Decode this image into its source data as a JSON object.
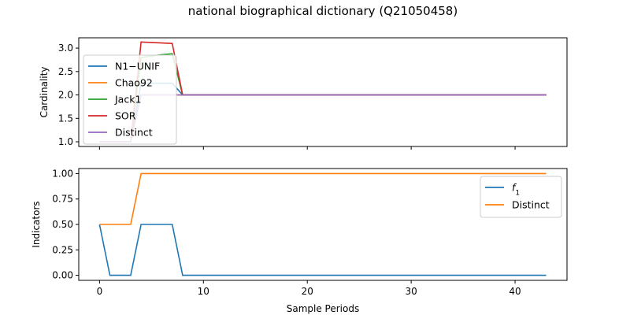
{
  "chart_data": [
    {
      "type": "line",
      "title": "national biographical dictionary (Q21050458)",
      "xlabel": "",
      "ylabel": "Cardinality",
      "xlim": [
        -2,
        45
      ],
      "ylim": [
        0.9,
        3.22
      ],
      "xticks": [
        0,
        10,
        20,
        30,
        40
      ],
      "xtick_labels_visible": false,
      "yticks": [
        1.0,
        1.5,
        2.0,
        2.5,
        3.0
      ],
      "ytick_labels": [
        "1.0",
        "1.5",
        "2.0",
        "2.5",
        "3.0"
      ],
      "grid": false,
      "legend_position": "left",
      "series": [
        {
          "name": "N1−UNIF",
          "color": "#1f77b4",
          "x": [
            0,
            1,
            2,
            3,
            4,
            5,
            6,
            7,
            8,
            43
          ],
          "y": [
            1.0,
            1.0,
            1.0,
            1.0,
            2.25,
            2.25,
            2.25,
            2.25,
            2.0,
            2.0
          ]
        },
        {
          "name": "Chao92",
          "color": "#ff7f0e",
          "x": [
            0,
            1,
            2,
            3,
            4,
            5,
            6,
            7,
            8,
            43
          ],
          "y": [
            1.0,
            1.0,
            1.0,
            1.0,
            2.0,
            2.0,
            2.0,
            2.0,
            2.0,
            2.0
          ]
        },
        {
          "name": "Jack1",
          "color": "#2ca02c",
          "x": [
            0,
            1,
            2,
            3,
            4,
            5,
            6,
            7,
            8,
            43
          ],
          "y": [
            1.0,
            1.0,
            1.0,
            1.0,
            2.8,
            2.83,
            2.86,
            2.88,
            2.0,
            2.0
          ]
        },
        {
          "name": "SOR",
          "color": "#d62728",
          "x": [
            0,
            1,
            2,
            3,
            4,
            5,
            6,
            7,
            8,
            43
          ],
          "y": [
            1.0,
            1.0,
            1.0,
            1.0,
            3.13,
            3.12,
            3.11,
            3.1,
            2.0,
            2.0
          ]
        },
        {
          "name": "Distinct",
          "color": "#9467bd",
          "x": [
            0,
            1,
            2,
            3,
            4,
            5,
            6,
            7,
            8,
            43
          ],
          "y": [
            1.0,
            1.0,
            1.0,
            1.0,
            2.0,
            2.0,
            2.0,
            2.0,
            2.0,
            2.0
          ]
        }
      ]
    },
    {
      "type": "line",
      "title": "",
      "xlabel": "Sample Periods",
      "ylabel": "Indicators",
      "xlim": [
        -2,
        45
      ],
      "ylim": [
        -0.05,
        1.05
      ],
      "xticks": [
        0,
        10,
        20,
        30,
        40
      ],
      "xtick_labels": [
        "0",
        "10",
        "20",
        "30",
        "40"
      ],
      "yticks": [
        0.0,
        0.25,
        0.5,
        0.75,
        1.0
      ],
      "ytick_labels": [
        "0.00",
        "0.25",
        "0.50",
        "0.75",
        "1.00"
      ],
      "grid": false,
      "legend_position": "top-right",
      "series": [
        {
          "name": "f",
          "subscript": "1",
          "color": "#1f77b4",
          "x": [
            0,
            1,
            2,
            3,
            4,
            5,
            6,
            7,
            8,
            43
          ],
          "y": [
            0.5,
            0.0,
            0.0,
            0.0,
            0.5,
            0.5,
            0.5,
            0.5,
            0.0,
            0.0
          ]
        },
        {
          "name": "Distinct",
          "color": "#ff7f0e",
          "x": [
            0,
            1,
            2,
            3,
            4,
            5,
            6,
            7,
            8,
            43
          ],
          "y": [
            0.5,
            0.5,
            0.5,
            0.5,
            1.0,
            1.0,
            1.0,
            1.0,
            1.0,
            1.0
          ]
        }
      ]
    }
  ]
}
